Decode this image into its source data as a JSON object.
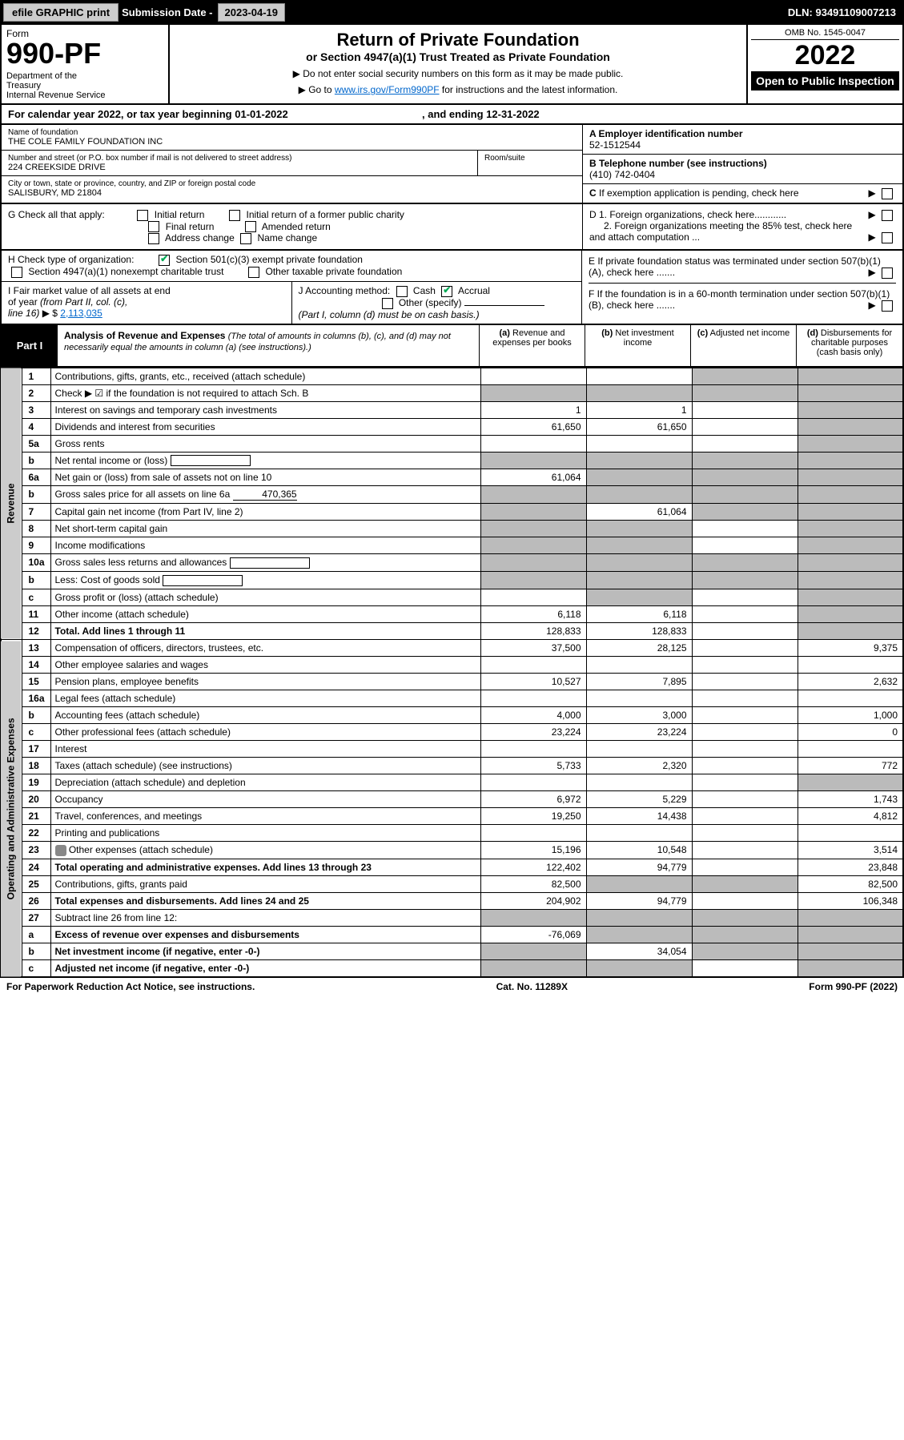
{
  "topbar": {
    "efile_btn": "efile GRAPHIC print",
    "submission_label": "Submission Date - ",
    "submission_date": "2023-04-19",
    "dln_label": "DLN: ",
    "dln": "93491109007213"
  },
  "header": {
    "form_label": "Form",
    "form_number": "990-PF",
    "dept": "Department of the Treasury\nInternal Revenue Service",
    "title": "Return of Private Foundation",
    "subtitle": "or Section 4947(a)(1) Trust Treated as Private Foundation",
    "note1": "▶ Do not enter social security numbers on this form as it may be made public.",
    "note2_pre": "▶ Go to ",
    "note2_link": "www.irs.gov/Form990PF",
    "note2_post": " for instructions and the latest information.",
    "omb": "OMB No. 1545-0047",
    "year": "2022",
    "open": "Open to Public Inspection"
  },
  "calendar": {
    "text_pre": "For calendar year 2022, or tax year beginning ",
    "begin": "01-01-2022",
    "text_mid": " , and ending ",
    "end": "12-31-2022"
  },
  "id": {
    "name_label": "Name of foundation",
    "name": "THE COLE FAMILY FOUNDATION INC",
    "addr_label": "Number and street (or P.O. box number if mail is not delivered to street address)",
    "addr": "224 CREEKSIDE DRIVE",
    "room_label": "Room/suite",
    "city_label": "City or town, state or province, country, and ZIP or foreign postal code",
    "city": "SALISBURY, MD  21804",
    "a_label": "A Employer identification number",
    "a_val": "52-1512544",
    "b_label": "B Telephone number (see instructions)",
    "b_val": "(410) 742-0404",
    "c_label": "C If exemption application is pending, check here",
    "d1_label": "D 1. Foreign organizations, check here............",
    "d2_label": "2. Foreign organizations meeting the 85% test, check here and attach computation ...",
    "e_label": "E  If private foundation status was terminated under section 507(b)(1)(A), check here .......",
    "f_label": "F  If the foundation is in a 60-month termination under section 507(b)(1)(B), check here .......",
    "g_label": "G Check all that apply:",
    "g_opts": [
      "Initial return",
      "Initial return of a former public charity",
      "Final return",
      "Amended return",
      "Address change",
      "Name change"
    ],
    "h_label": "H Check type of organization:",
    "h_opts": [
      "Section 501(c)(3) exempt private foundation",
      "Section 4947(a)(1) nonexempt charitable trust",
      "Other taxable private foundation"
    ],
    "i_label": "I Fair market value of all assets at end of year (from Part II, col. (c), line 16) ▶ $",
    "i_val": "2,113,035",
    "j_label": "J Accounting method:",
    "j_opts": [
      "Cash",
      "Accrual",
      "Other (specify)"
    ],
    "j_note": "(Part I, column (d) must be on cash basis.)"
  },
  "part1": {
    "label": "Part I",
    "title": "Analysis of Revenue and Expenses",
    "title_note": "(The total of amounts in columns (b), (c), and (d) may not necessarily equal the amounts in column (a) (see instructions).)",
    "col_a": "(a) Revenue and expenses per books",
    "col_b": "(b) Net investment income",
    "col_c": "(c) Adjusted net income",
    "col_d": "(d) Disbursements for charitable purposes (cash basis only)"
  },
  "revenue_label": "Revenue",
  "expenses_label": "Operating and Administrative Expenses",
  "rows": [
    {
      "n": "1",
      "d": "Contributions, gifts, grants, etc., received (attach schedule)",
      "a": "",
      "b": "",
      "c": "grey",
      "dd": "grey"
    },
    {
      "n": "2",
      "d": "Check ▶ ☑ if the foundation is not required to attach Sch. B",
      "a": "grey",
      "b": "grey",
      "c": "grey",
      "dd": "grey",
      "nocols": true
    },
    {
      "n": "3",
      "d": "Interest on savings and temporary cash investments",
      "a": "1",
      "b": "1",
      "c": "",
      "dd": "grey"
    },
    {
      "n": "4",
      "d": "Dividends and interest from securities",
      "a": "61,650",
      "b": "61,650",
      "c": "",
      "dd": "grey"
    },
    {
      "n": "5a",
      "d": "Gross rents",
      "a": "",
      "b": "",
      "c": "",
      "dd": "grey"
    },
    {
      "n": "b",
      "d": "Net rental income or (loss)",
      "a": "grey",
      "b": "grey",
      "c": "grey",
      "dd": "grey",
      "inline": true
    },
    {
      "n": "6a",
      "d": "Net gain or (loss) from sale of assets not on line 10",
      "a": "61,064",
      "b": "grey",
      "c": "grey",
      "dd": "grey"
    },
    {
      "n": "b",
      "d": "Gross sales price for all assets on line 6a",
      "inline_val": "470,365",
      "a": "grey",
      "b": "grey",
      "c": "grey",
      "dd": "grey"
    },
    {
      "n": "7",
      "d": "Capital gain net income (from Part IV, line 2)",
      "a": "grey",
      "b": "61,064",
      "c": "grey",
      "dd": "grey"
    },
    {
      "n": "8",
      "d": "Net short-term capital gain",
      "a": "grey",
      "b": "grey",
      "c": "",
      "dd": "grey"
    },
    {
      "n": "9",
      "d": "Income modifications",
      "a": "grey",
      "b": "grey",
      "c": "",
      "dd": "grey"
    },
    {
      "n": "10a",
      "d": "Gross sales less returns and allowances",
      "a": "grey",
      "b": "grey",
      "c": "grey",
      "dd": "grey",
      "inline": true
    },
    {
      "n": "b",
      "d": "Less: Cost of goods sold",
      "a": "grey",
      "b": "grey",
      "c": "grey",
      "dd": "grey",
      "inline": true
    },
    {
      "n": "c",
      "d": "Gross profit or (loss) (attach schedule)",
      "a": "",
      "b": "grey",
      "c": "",
      "dd": "grey"
    },
    {
      "n": "11",
      "d": "Other income (attach schedule)",
      "a": "6,118",
      "b": "6,118",
      "c": "",
      "dd": "grey"
    },
    {
      "n": "12",
      "d": "Total. Add lines 1 through 11",
      "a": "128,833",
      "b": "128,833",
      "c": "",
      "dd": "grey",
      "bold": true
    }
  ],
  "exp_rows": [
    {
      "n": "13",
      "d": "Compensation of officers, directors, trustees, etc.",
      "a": "37,500",
      "b": "28,125",
      "c": "",
      "dd": "9,375"
    },
    {
      "n": "14",
      "d": "Other employee salaries and wages",
      "a": "",
      "b": "",
      "c": "",
      "dd": ""
    },
    {
      "n": "15",
      "d": "Pension plans, employee benefits",
      "a": "10,527",
      "b": "7,895",
      "c": "",
      "dd": "2,632"
    },
    {
      "n": "16a",
      "d": "Legal fees (attach schedule)",
      "a": "",
      "b": "",
      "c": "",
      "dd": ""
    },
    {
      "n": "b",
      "d": "Accounting fees (attach schedule)",
      "a": "4,000",
      "b": "3,000",
      "c": "",
      "dd": "1,000"
    },
    {
      "n": "c",
      "d": "Other professional fees (attach schedule)",
      "a": "23,224",
      "b": "23,224",
      "c": "",
      "dd": "0"
    },
    {
      "n": "17",
      "d": "Interest",
      "a": "",
      "b": "",
      "c": "",
      "dd": ""
    },
    {
      "n": "18",
      "d": "Taxes (attach schedule) (see instructions)",
      "a": "5,733",
      "b": "2,320",
      "c": "",
      "dd": "772"
    },
    {
      "n": "19",
      "d": "Depreciation (attach schedule) and depletion",
      "a": "",
      "b": "",
      "c": "",
      "dd": "grey"
    },
    {
      "n": "20",
      "d": "Occupancy",
      "a": "6,972",
      "b": "5,229",
      "c": "",
      "dd": "1,743"
    },
    {
      "n": "21",
      "d": "Travel, conferences, and meetings",
      "a": "19,250",
      "b": "14,438",
      "c": "",
      "dd": "4,812"
    },
    {
      "n": "22",
      "d": "Printing and publications",
      "a": "",
      "b": "",
      "c": "",
      "dd": ""
    },
    {
      "n": "23",
      "d": "Other expenses (attach schedule)",
      "a": "15,196",
      "b": "10,548",
      "c": "",
      "dd": "3,514",
      "icon": true
    },
    {
      "n": "24",
      "d": "Total operating and administrative expenses. Add lines 13 through 23",
      "a": "122,402",
      "b": "94,779",
      "c": "",
      "dd": "23,848",
      "bold": true
    },
    {
      "n": "25",
      "d": "Contributions, gifts, grants paid",
      "a": "82,500",
      "b": "grey",
      "c": "grey",
      "dd": "82,500"
    },
    {
      "n": "26",
      "d": "Total expenses and disbursements. Add lines 24 and 25",
      "a": "204,902",
      "b": "94,779",
      "c": "",
      "dd": "106,348",
      "bold": true
    },
    {
      "n": "27",
      "d": "Subtract line 26 from line 12:",
      "a": "grey",
      "b": "grey",
      "c": "grey",
      "dd": "grey"
    },
    {
      "n": "a",
      "d": "Excess of revenue over expenses and disbursements",
      "a": "-76,069",
      "b": "grey",
      "c": "grey",
      "dd": "grey",
      "bold": true
    },
    {
      "n": "b",
      "d": "Net investment income (if negative, enter -0-)",
      "a": "grey",
      "b": "34,054",
      "c": "grey",
      "dd": "grey",
      "bold": true
    },
    {
      "n": "c",
      "d": "Adjusted net income (if negative, enter -0-)",
      "a": "grey",
      "b": "grey",
      "c": "",
      "dd": "grey",
      "bold": true
    }
  ],
  "footer": {
    "left": "For Paperwork Reduction Act Notice, see instructions.",
    "mid": "Cat. No. 11289X",
    "right": "Form 990-PF (2022)"
  }
}
